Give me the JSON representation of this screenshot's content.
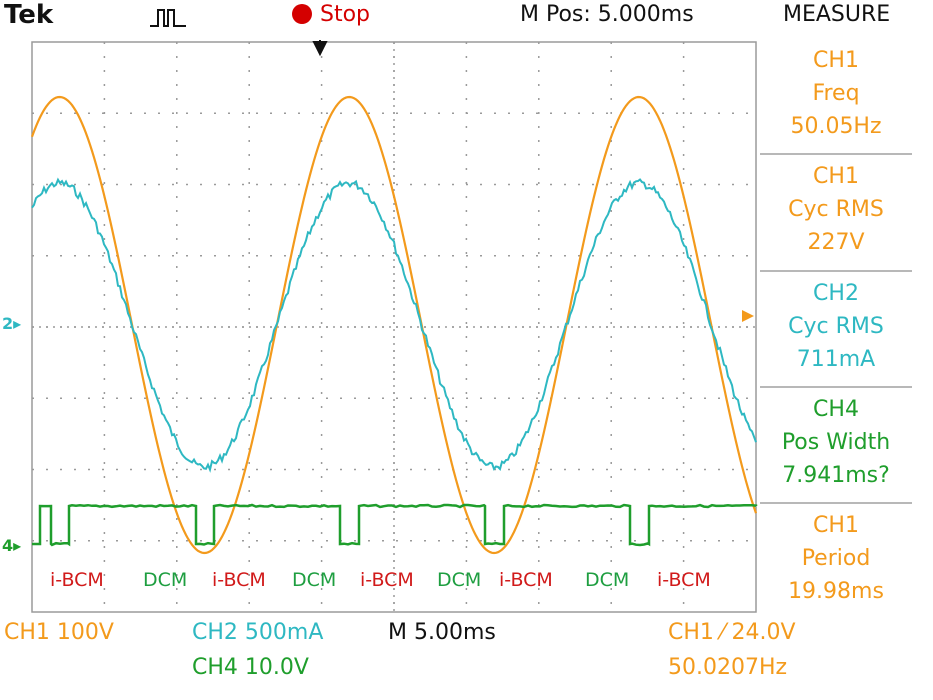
{
  "header": {
    "brand": "Tek",
    "status": "Stop",
    "m_pos": "M Pos: 5.000ms",
    "measure_title": "MEASURE"
  },
  "measurements": [
    {
      "channel": "CH1",
      "label": "Freq",
      "value": "50.05Hz",
      "color": "#f39a1c"
    },
    {
      "channel": "CH1",
      "label": "Cyc RMS",
      "value": "227V",
      "color": "#f39a1c"
    },
    {
      "channel": "CH2",
      "label": "Cyc RMS",
      "value": "711mA",
      "color": "#2eb8c2"
    },
    {
      "channel": "CH4",
      "label": "Pos Width",
      "value": "7.941ms?",
      "color": "#1f9e2c"
    },
    {
      "channel": "CH1",
      "label": "Period",
      "value": "19.98ms",
      "color": "#f39a1c"
    }
  ],
  "footer": {
    "ch1_scale": "CH1  100V",
    "ch2_scale": "CH2  500mA",
    "ch4_scale": "CH4  10.0V",
    "timebase": "M 5.00ms",
    "trigger": "CH1  ⁄  24.0V",
    "trigger_freq": "50.0207Hz"
  },
  "modes": [
    "i-BCM",
    "DCM",
    "i-BCM",
    "DCM",
    "i-BCM",
    "DCM",
    "i-BCM",
    "DCM",
    "i-BCM"
  ],
  "markers": {
    "ch2": "2",
    "ch4": "4"
  },
  "colors": {
    "ch1": "#f39a1c",
    "ch2": "#2eb8c2",
    "ch4": "#1f9e2c",
    "grid": "#9a9a9a",
    "bcm": "#d11a1a",
    "dcm": "#1e9e40"
  }
}
